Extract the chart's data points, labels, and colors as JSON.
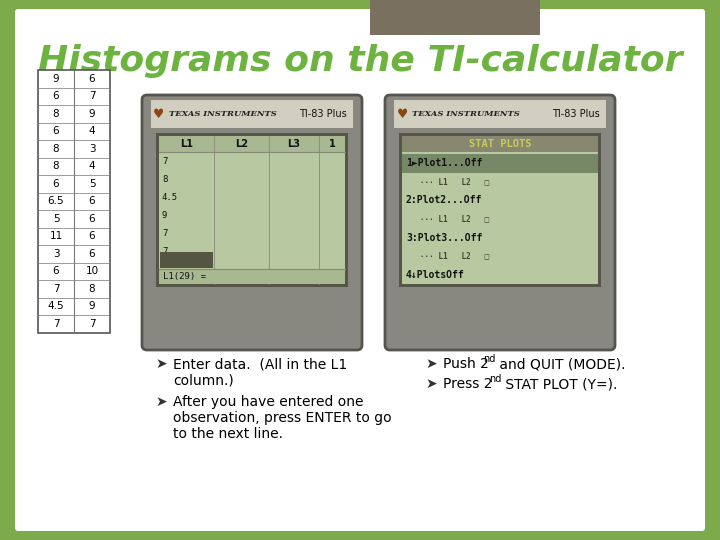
{
  "title": "Histograms on the TI-calculator",
  "title_color": "#6db33f",
  "title_fontsize": 26,
  "bg_slide": "#7daa4a",
  "bg_content": "#ffffff",
  "top_rect_color": "#7a7060",
  "table_col1": [
    "9",
    "6",
    "8",
    "6",
    "8",
    "8",
    "6",
    "6.5",
    "5",
    "11",
    "3",
    "6",
    "7",
    "4.5",
    "7"
  ],
  "table_col2": [
    "6",
    "7",
    "9",
    "4",
    "3",
    "4",
    "5",
    "6",
    "6",
    "6",
    "6",
    "10",
    "8",
    "9",
    "7"
  ],
  "calc_bg": "#c8c8b8",
  "calc_screen_bg": "#b8c8a0",
  "calc_screen_dark": "#a0a888",
  "screen_header_bg": "#a8b890",
  "screen_text_color": "#222222",
  "stat_highlight_bg": "#888870",
  "stat_title_color": "#cccc44",
  "body_bg": "#888880",
  "body_edge": "#555550"
}
